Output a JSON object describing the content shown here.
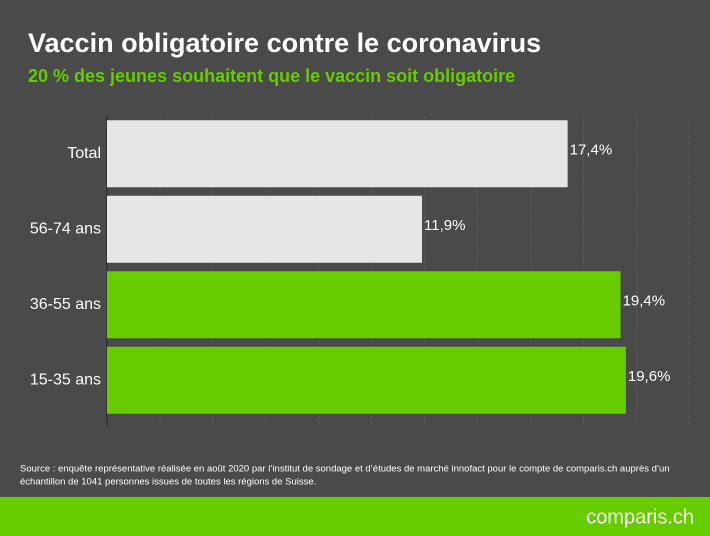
{
  "chart_data": {
    "type": "barh",
    "title": "Vaccin obligatoire contre le coronavirus",
    "subtitle": "20 % des jeunes souhaitent que le vaccin soit obligatoire",
    "categories": [
      "Total",
      "56-74 ans",
      "36-55 ans",
      "15-35 ans"
    ],
    "values": [
      17.4,
      11.9,
      19.4,
      19.6
    ],
    "value_labels": [
      "17,4%",
      "11,9%",
      "19,4%",
      "19,6%"
    ],
    "colors": [
      "#e6e6e6",
      "#e6e6e6",
      "#66cc00",
      "#66cc00"
    ],
    "xlim": [
      0,
      22.4
    ],
    "xticks": [
      0,
      2,
      4,
      6,
      8,
      10,
      12,
      14,
      16,
      18,
      20,
      22
    ],
    "grid": true,
    "source": [
      "Source : enquête représentative réalisée en août 2020 par l’institut de sondage et d’études de marché innofact pour le compte de comparis.ch auprès d’un",
      "échantillon de 1041 personnes issues de toutes les régions de Suisse."
    ],
    "logo": "comparis.ch"
  }
}
